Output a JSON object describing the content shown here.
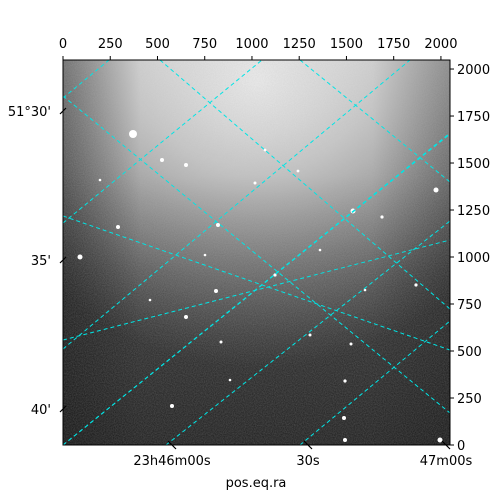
{
  "chart_data": {
    "type": "image-wcs",
    "xlabel": "pos.eq.ra",
    "ylabel": "",
    "top_x_ticks": [
      "0",
      "250",
      "500",
      "750",
      "1000",
      "1250",
      "1500",
      "1750",
      "2000"
    ],
    "top_x_values": [
      0,
      250,
      500,
      750,
      1000,
      1250,
      1500,
      1750,
      2000
    ],
    "right_y_ticks": [
      "0",
      "250",
      "500",
      "750",
      "1000",
      "1250",
      "1500",
      "1750",
      "2000"
    ],
    "right_y_values": [
      0,
      250,
      500,
      750,
      1000,
      1250,
      1500,
      1750,
      2000
    ],
    "pixel_range": [
      0,
      2048
    ],
    "ra_ticks": [
      "23h46m00s",
      "30s",
      "47m00s"
    ],
    "dec_ticks": [
      "51°30'",
      "35'",
      "40'"
    ],
    "grid_color": "#00e5e5",
    "image_colormap": "gray",
    "grid": true
  }
}
